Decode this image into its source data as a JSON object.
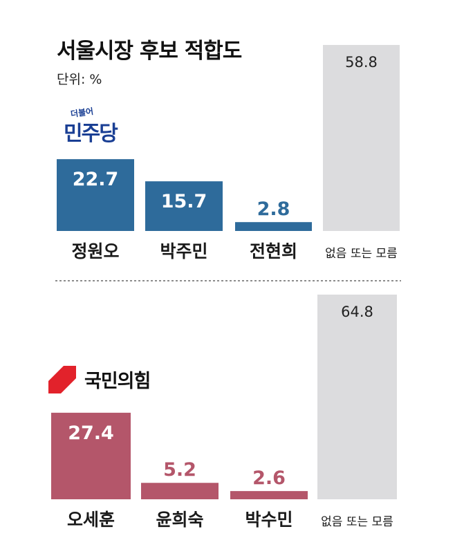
{
  "title": "서울시장 후보 적합도",
  "unit": "단위: %",
  "colors": {
    "democratic": "#2e6b9b",
    "ppp": "#b4566a",
    "none": "#dcdcde",
    "ppp_logo": "#e2222b",
    "dem_logo": "#1a3f94"
  },
  "logos": {
    "democratic": {
      "sub": "더불어",
      "main": "민주당"
    },
    "ppp": {
      "main": "국민의힘",
      "icon": "ppp-logo-mark-icon"
    }
  },
  "chart_data": [
    {
      "type": "bar",
      "group": "democratic",
      "categories": [
        "정원오",
        "박주민",
        "전현희",
        "없음 또는 모름"
      ],
      "values": [
        22.7,
        15.7,
        2.8,
        58.8
      ],
      "value_labels": [
        "22.7",
        "15.7",
        "2.8",
        "58.8"
      ],
      "ylim": [
        0,
        58.8
      ]
    },
    {
      "type": "bar",
      "group": "ppp",
      "categories": [
        "오세훈",
        "윤희숙",
        "박수민",
        "없음 또는 모름"
      ],
      "values": [
        27.4,
        5.2,
        2.6,
        64.8
      ],
      "value_labels": [
        "27.4",
        "5.2",
        "2.6",
        "64.8"
      ],
      "ylim": [
        0,
        64.8
      ]
    }
  ]
}
